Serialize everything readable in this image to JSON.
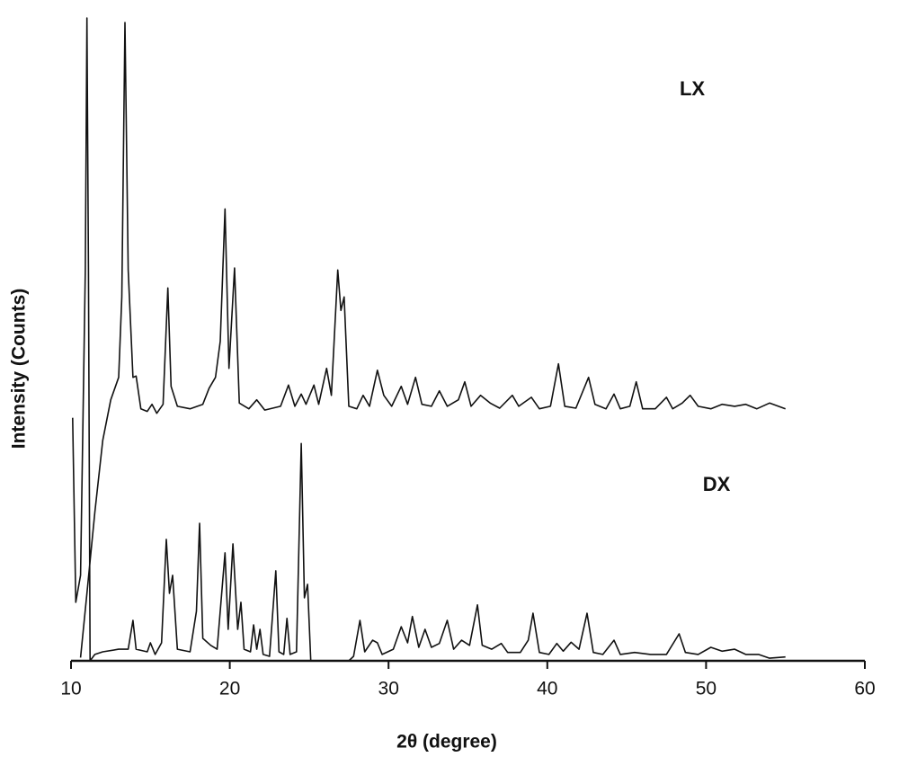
{
  "chart_data": {
    "type": "line",
    "x_label": "2θ (degree)",
    "y_label": "Intensity (Counts)",
    "xlim": [
      10,
      60
    ],
    "xticks": [
      10,
      20,
      30,
      40,
      50,
      60
    ],
    "ylim": [
      0,
      100
    ],
    "series": [
      {
        "name": "LX",
        "color": "#111111",
        "x": [
          10.6,
          11.0,
          11.5,
          12.0,
          12.5,
          13.0,
          13.2,
          13.4,
          13.6,
          13.9,
          14.1,
          14.4,
          14.8,
          15.1,
          15.4,
          15.8,
          16.1,
          16.3,
          16.7,
          17.5,
          18.3,
          18.7,
          19.1,
          19.4,
          19.7,
          19.95,
          20.3,
          20.6,
          21.2,
          21.7,
          22.2,
          23.2,
          23.7,
          24.1,
          24.5,
          24.8,
          25.3,
          25.6,
          26.1,
          26.4,
          26.8,
          27.0,
          27.2,
          27.5,
          28.0,
          28.4,
          28.8,
          29.3,
          29.7,
          30.2,
          30.8,
          31.2,
          31.7,
          32.1,
          32.7,
          33.2,
          33.7,
          34.4,
          34.8,
          35.2,
          35.8,
          36.4,
          37.0,
          37.8,
          38.2,
          39.0,
          39.5,
          40.2,
          40.7,
          41.1,
          41.8,
          42.6,
          43.0,
          43.7,
          44.2,
          44.6,
          45.2,
          45.6,
          46.0,
          46.8,
          47.5,
          47.9,
          48.5,
          49.0,
          49.5,
          50.3,
          51.0,
          51.8,
          52.5,
          53.2,
          54.0,
          55.0
        ],
        "values": [
          0.5,
          10.5,
          23.1,
          34.3,
          40.6,
          44.1,
          56.6,
          99.3,
          60.8,
          44.1,
          44.3,
          39.2,
          38.8,
          39.9,
          38.5,
          39.9,
          58.0,
          42.7,
          39.6,
          39.2,
          39.9,
          42.4,
          44.1,
          49.7,
          70.3,
          45.5,
          61.1,
          40.1,
          39.2,
          40.6,
          39.0,
          39.6,
          42.9,
          39.6,
          41.5,
          39.9,
          42.9,
          39.9,
          45.5,
          41.3,
          60.8,
          54.5,
          56.6,
          39.6,
          39.2,
          41.3,
          39.6,
          45.2,
          41.3,
          39.6,
          42.7,
          39.9,
          44.1,
          39.9,
          39.6,
          42.0,
          39.6,
          40.6,
          43.4,
          39.6,
          41.3,
          40.1,
          39.3,
          41.3,
          39.6,
          41.0,
          39.2,
          39.6,
          46.2,
          39.6,
          39.3,
          44.1,
          39.9,
          39.2,
          41.5,
          39.2,
          39.6,
          43.4,
          39.2,
          39.2,
          41.0,
          39.2,
          40.1,
          41.3,
          39.6,
          39.2,
          39.9,
          39.6,
          39.9,
          39.2,
          40.1,
          39.2
        ]
      },
      {
        "name": "DX",
        "color": "#111111",
        "x": [
          10.1,
          10.3,
          10.6,
          10.9,
          11.0,
          11.1,
          11.2,
          11.5,
          12.0,
          13.0,
          13.6,
          13.9,
          14.1,
          14.8,
          15.0,
          15.3,
          15.7,
          16.0,
          16.2,
          16.4,
          16.7,
          17.5,
          17.9,
          18.1,
          18.3,
          18.8,
          19.2,
          19.7,
          19.9,
          20.2,
          20.5,
          20.7,
          20.9,
          21.3,
          21.5,
          21.7,
          21.9,
          22.1,
          22.5,
          22.9,
          23.1,
          23.4,
          23.6,
          23.8,
          24.2,
          24.5,
          24.7,
          24.9,
          25.1,
          27.5,
          27.8,
          28.2,
          28.5,
          29.0,
          29.3,
          29.6,
          30.3,
          30.8,
          31.2,
          31.5,
          31.9,
          32.3,
          32.7,
          33.2,
          33.7,
          34.1,
          34.6,
          35.1,
          35.6,
          35.9,
          36.5,
          37.1,
          37.5,
          38.3,
          38.8,
          39.1,
          39.5,
          40.1,
          40.6,
          41.0,
          41.5,
          42.0,
          42.5,
          42.9,
          43.5,
          44.2,
          44.6,
          45.5,
          46.5,
          47.5,
          48.3,
          48.7,
          49.5,
          50.3,
          51.0,
          51.8,
          52.5,
          53.3,
          54.0,
          55.0
        ],
        "values": [
          37.8,
          9.1,
          13.3,
          60.8,
          100,
          60.8,
          0,
          1.0,
          1.4,
          1.8,
          1.8,
          6.3,
          1.8,
          1.4,
          2.8,
          1.0,
          2.8,
          18.9,
          10.5,
          13.3,
          1.8,
          1.4,
          7.7,
          21.4,
          3.5,
          2.4,
          1.8,
          16.8,
          4.9,
          18.2,
          4.9,
          9.1,
          1.8,
          1.4,
          5.6,
          1.8,
          4.9,
          1.0,
          0.7,
          14.0,
          1.4,
          1.0,
          6.6,
          1.0,
          1.4,
          33.8,
          9.8,
          11.9,
          0,
          0,
          0.7,
          6.3,
          1.4,
          3.2,
          2.8,
          1.0,
          1.8,
          5.3,
          2.8,
          6.9,
          2.1,
          4.9,
          2.1,
          2.7,
          6.3,
          1.8,
          3.2,
          2.4,
          8.7,
          2.4,
          1.8,
          2.7,
          1.3,
          1.3,
          3.2,
          7.4,
          1.3,
          1.0,
          2.7,
          1.5,
          2.9,
          1.8,
          7.4,
          1.3,
          1.0,
          3.2,
          1.0,
          1.3,
          1.0,
          1.0,
          4.2,
          1.3,
          1.0,
          2.1,
          1.5,
          1.8,
          1.0,
          1.0,
          0.4,
          0.6
        ]
      }
    ]
  }
}
